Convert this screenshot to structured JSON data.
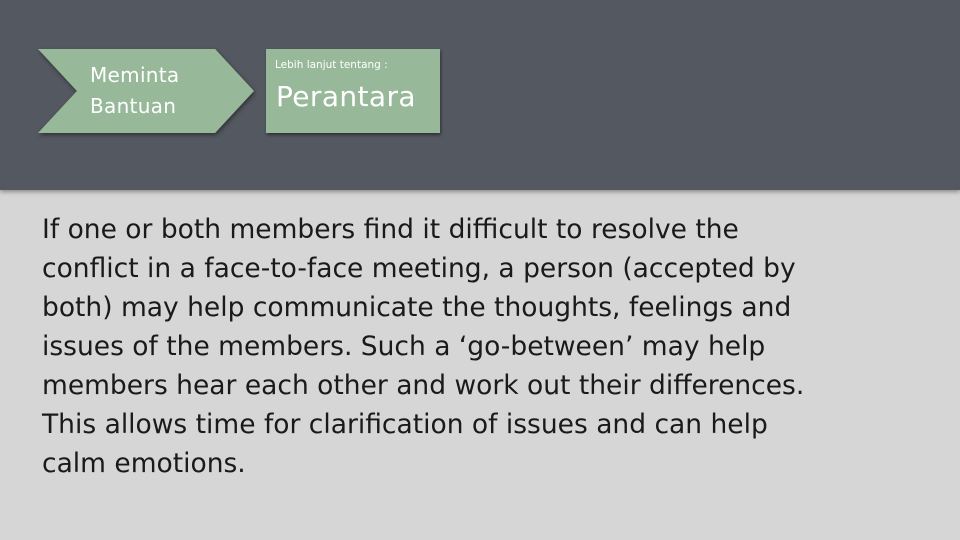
{
  "header": {
    "step_button": {
      "line1": "Meminta",
      "line2": "Bantuan"
    },
    "topic_box": {
      "subtitle": "Lebih lanjut tentang :",
      "title": "Perantara"
    }
  },
  "content": {
    "paragraph": "If one or both members find it difficult to resolve the\nconflict in a face-to-face meeting, a  person (accepted by\nboth) may help communicate the thoughts, feelings and\nissues of the members. Such a ‘go-between’ may help\nmembers hear each other and work out their differences.\nThis allows time for clarification of issues and can help\ncalm emotions."
  },
  "colors": {
    "header_bg": "#545861",
    "accent_green": "#98b89a",
    "page_bg": "#d6d6d6"
  }
}
